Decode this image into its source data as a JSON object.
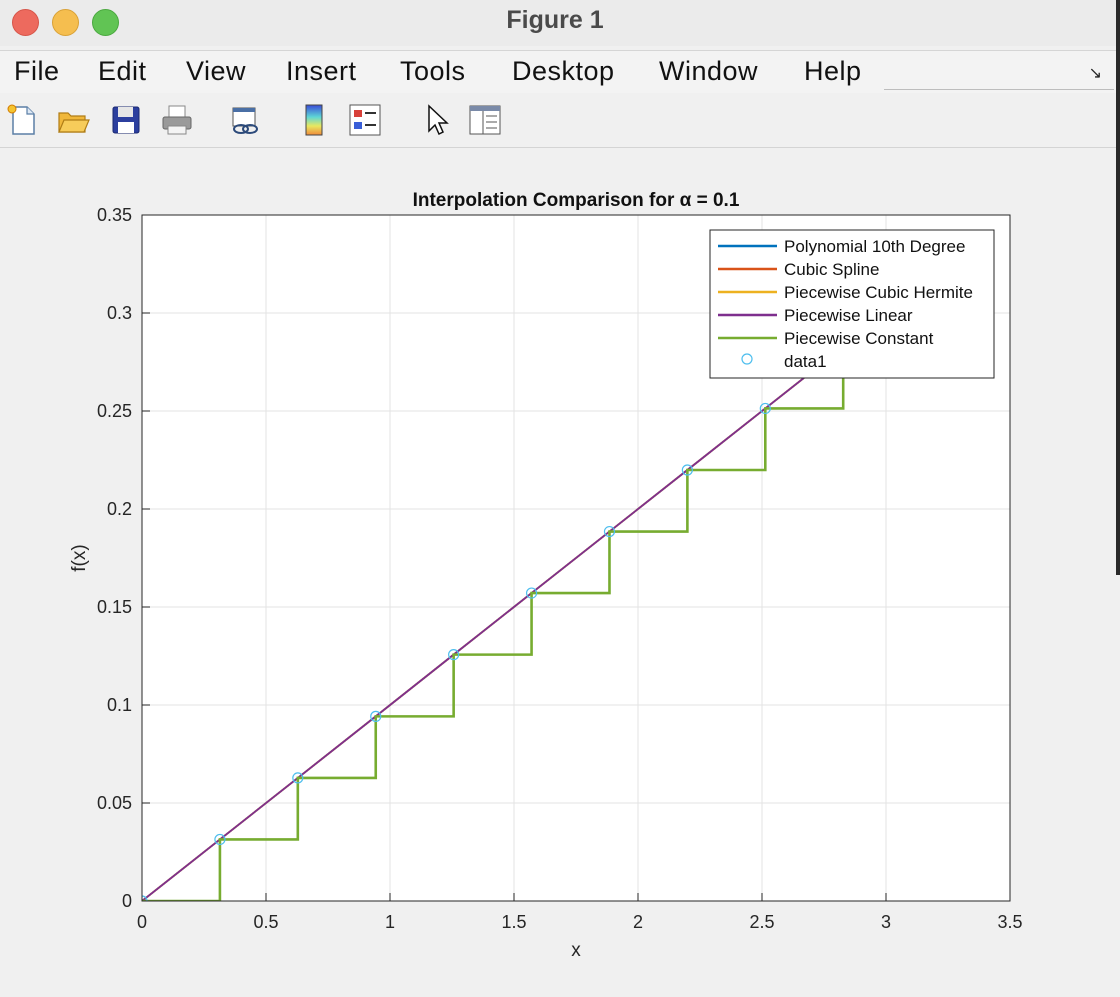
{
  "window": {
    "title": "Figure 1"
  },
  "menu": [
    "File",
    "Edit",
    "View",
    "Insert",
    "Tools",
    "Desktop",
    "Window",
    "Help"
  ],
  "toolbar": [
    "new-figure-icon",
    "open-folder-icon",
    "save-disk-icon",
    "print-icon",
    "link-plot-icon",
    "colorbar-icon",
    "legend-icon",
    "pointer-icon",
    "property-inspector-icon"
  ],
  "chart_data": {
    "type": "line",
    "title": "Interpolation Comparison for α = 0.1",
    "xlabel": "x",
    "ylabel": "f(x)",
    "xlim": [
      0,
      3.5
    ],
    "ylim": [
      0,
      0.35
    ],
    "xticks": [
      "0",
      "0.5",
      "1",
      "1.5",
      "2",
      "2.5",
      "3",
      "3.5"
    ],
    "yticks": [
      "0",
      "0.05",
      "0.1",
      "0.15",
      "0.2",
      "0.25",
      "0.3",
      "0.35"
    ],
    "grid": true,
    "legend_position": "top-right",
    "data_points": {
      "x": [
        0,
        0.3142,
        0.6283,
        0.9425,
        1.2566,
        1.5708,
        1.885,
        2.1991,
        2.5133,
        2.8274,
        3.1416
      ],
      "y": [
        0,
        0.0314,
        0.0628,
        0.0942,
        0.1257,
        0.1571,
        0.1885,
        0.2199,
        0.2513,
        0.2827,
        0.3142
      ]
    },
    "series": [
      {
        "name": "Polynomial 10th Degree",
        "color": "#0072BD",
        "style": "line"
      },
      {
        "name": "Cubic Spline",
        "color": "#D95319",
        "style": "line"
      },
      {
        "name": "Piecewise Cubic Hermite",
        "color": "#EDB120",
        "style": "line"
      },
      {
        "name": "Piecewise Linear",
        "color": "#7E2F8E",
        "style": "line"
      },
      {
        "name": "Piecewise Constant",
        "color": "#77AC30",
        "style": "step"
      },
      {
        "name": "data1",
        "color": "#4DBEEE",
        "style": "marker"
      }
    ]
  }
}
